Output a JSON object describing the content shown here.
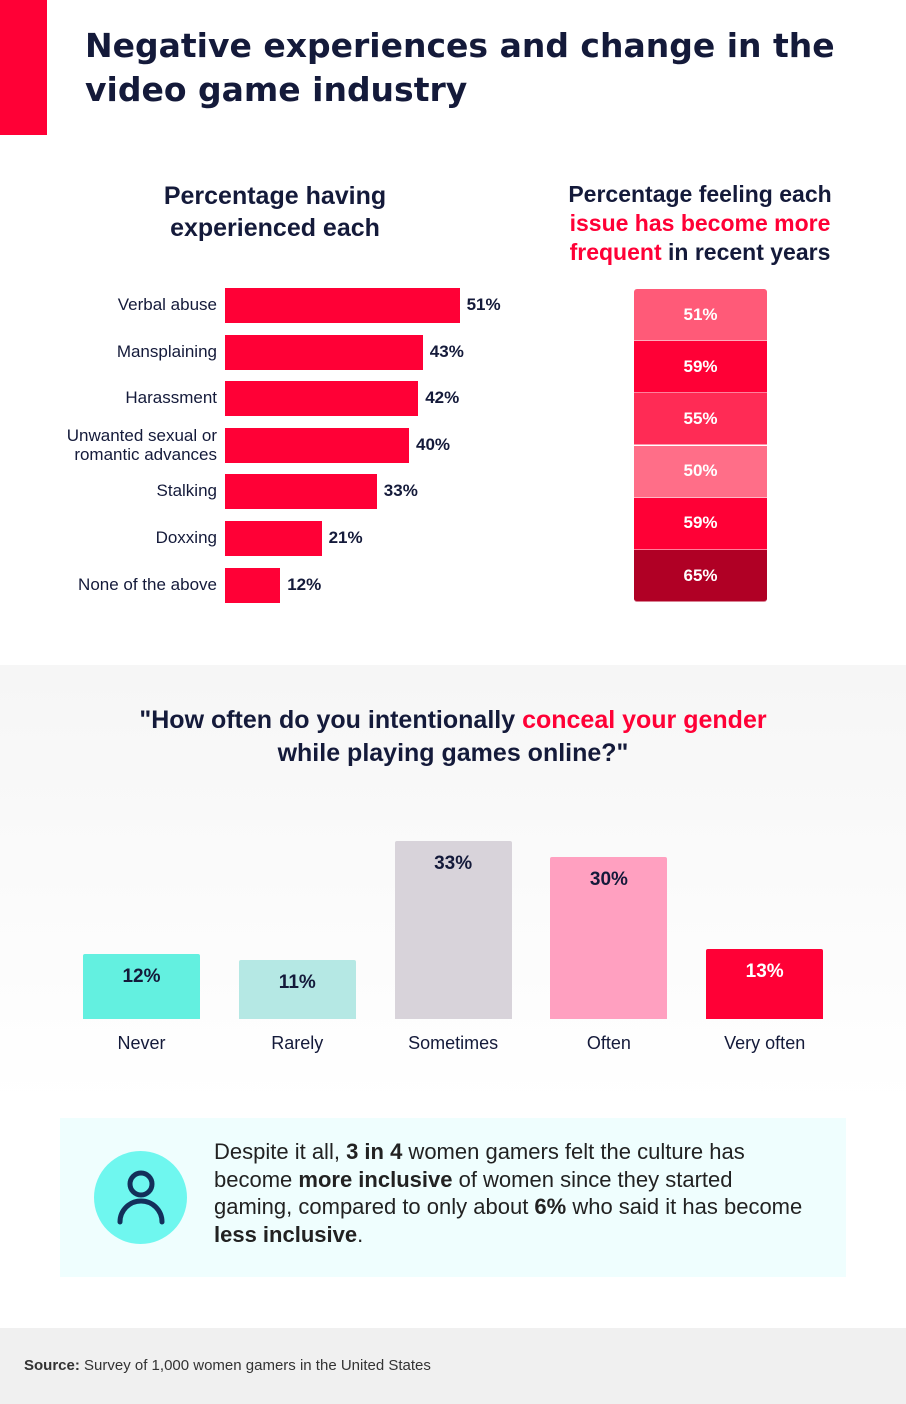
{
  "title": "Negative experiences and change in the video game industry",
  "colors": {
    "accent": "#ff0036",
    "dark": "#141a3a",
    "teal": "#6ff7ef"
  },
  "chart_data": [
    {
      "type": "bar",
      "orientation": "horizontal",
      "title": "Percentage having experienced each",
      "categories": [
        "Verbal abuse",
        "Mansplaining",
        "Harassment",
        "Unwanted sexual or romantic advances",
        "Stalking",
        "Doxxing",
        "None of the above"
      ],
      "values": [
        51,
        43,
        42,
        40,
        33,
        21,
        12
      ],
      "labels": [
        "51%",
        "43%",
        "42%",
        "40%",
        "33%",
        "21%",
        "12%"
      ],
      "color": "#ff0036"
    },
    {
      "type": "table",
      "title_parts": [
        "Percentage feeling each ",
        "issue has become more frequent",
        " in recent years"
      ],
      "values": [
        51,
        59,
        55,
        50,
        59,
        65
      ],
      "labels": [
        "51%",
        "59%",
        "55%",
        "50%",
        "59%",
        "65%"
      ],
      "colors": [
        "#ff5a78",
        "#ff0036",
        "#ff2b55",
        "#ff6e88",
        "#ff0036",
        "#b00025"
      ]
    },
    {
      "type": "bar",
      "orientation": "vertical",
      "title_parts": [
        "\"How often do you intentionally ",
        "conceal your gender",
        "while playing games online?\""
      ],
      "categories": [
        "Never",
        "Rarely",
        "Sometimes",
        "Often",
        "Very often"
      ],
      "values": [
        12,
        11,
        33,
        30,
        13
      ],
      "labels": [
        "12%",
        "11%",
        "33%",
        "30%",
        "13%"
      ],
      "colors": [
        "#63f0e0",
        "#b5e8e4",
        "#d8d3da",
        "#ffa0c0",
        "#ff0036"
      ],
      "label_colors": [
        "#141a3a",
        "#141a3a",
        "#141a3a",
        "#141a3a",
        "#ffffff"
      ]
    }
  ],
  "callout": {
    "icon": "person-icon",
    "parts": [
      "Despite it all, ",
      "3 in 4",
      " women gamers felt the culture has become ",
      "more inclusive",
      " of women since they started gaming, compared to only about ",
      "6%",
      " who said it has become ",
      "less inclusive",
      "."
    ]
  },
  "source": {
    "label": "Source:",
    "text": " Survey of 1,000 women gamers in the United States"
  }
}
